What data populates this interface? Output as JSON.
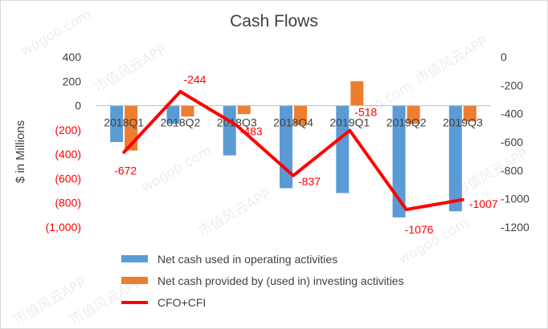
{
  "chart_data": {
    "type": "bar",
    "title": "Cash Flows",
    "ylabel": "$ in Millions",
    "categories": [
      "2018Q1",
      "2018Q2",
      "2018Q3",
      "2018Q4",
      "2019Q1",
      "2019Q2",
      "2019Q3"
    ],
    "series": [
      {
        "name": "Net cash used in operating activities",
        "type": "bar",
        "axis": "left",
        "color": "#5B9BD5",
        "values": [
          -300,
          -150,
          -410,
          -680,
          -720,
          -920,
          -870
        ]
      },
      {
        "name": "Net cash provided by (used in) investing activities",
        "type": "bar",
        "axis": "left",
        "color": "#ED7D31",
        "values": [
          -370,
          -90,
          -70,
          -160,
          200,
          -150,
          -130
        ]
      },
      {
        "name": "CFO+CFI",
        "type": "line",
        "axis": "right",
        "color": "#FF0000",
        "values": [
          -672,
          -244,
          -483,
          -837,
          -518,
          -1076,
          -1007
        ],
        "labels": [
          "-672",
          "-244",
          "-483",
          "-837",
          "-518",
          "-1076",
          "-1007"
        ]
      }
    ],
    "left_axis": {
      "ylim": [
        -1000,
        400
      ],
      "ticks": [
        400,
        200,
        0,
        -200,
        -400,
        -600,
        -800,
        -1000
      ],
      "tick_labels": [
        "400",
        "200",
        "0",
        "(200)",
        "(400)",
        "(600)",
        "(800)",
        "(1,000)"
      ],
      "tick_colors": [
        "#404040",
        "#404040",
        "#404040",
        "#FF0000",
        "#FF0000",
        "#FF0000",
        "#FF0000",
        "#FF0000"
      ]
    },
    "right_axis": {
      "ylim": [
        -1200,
        0
      ],
      "ticks": [
        0,
        -200,
        -400,
        -600,
        -800,
        -1000,
        -1200
      ],
      "tick_labels": [
        "0",
        "-200",
        "-400",
        "-600",
        "-800",
        "-1000",
        "-1200"
      ]
    },
    "grid": false,
    "legend_position": "bottom",
    "colors": {
      "text": "#404040",
      "negative": "#FF0000",
      "axis": "#bfbfbf"
    }
  },
  "watermark": {
    "text_cn": "市值风云APP",
    "text_url": "wogoo.com"
  }
}
